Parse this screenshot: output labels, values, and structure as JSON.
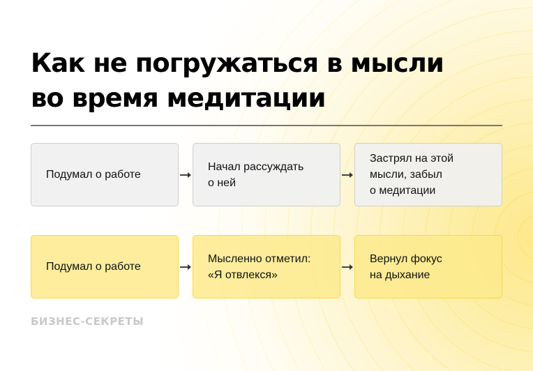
{
  "title_line1": "Как не погружаться в мысли",
  "title_line2": "во время медитации",
  "rows": [
    {
      "style": "gray",
      "steps": [
        "Подумал о работе",
        "Начал рассуждать\nо ней",
        "Застрял на этой\nмысли, забыл\nо медитации"
      ]
    },
    {
      "style": "yellow",
      "steps": [
        "Подумал о работе",
        "Мысленно отметил:\n«Я отвлекся»",
        "Вернул фокус\nна дыхание"
      ]
    }
  ],
  "brand": "БИЗНЕС-СЕКРЕТЫ",
  "colors": {
    "accent": "#fde88a",
    "box_gray": "#f0f0f0",
    "box_yellow": "#fdea8c",
    "ring": "#f8d94a"
  }
}
